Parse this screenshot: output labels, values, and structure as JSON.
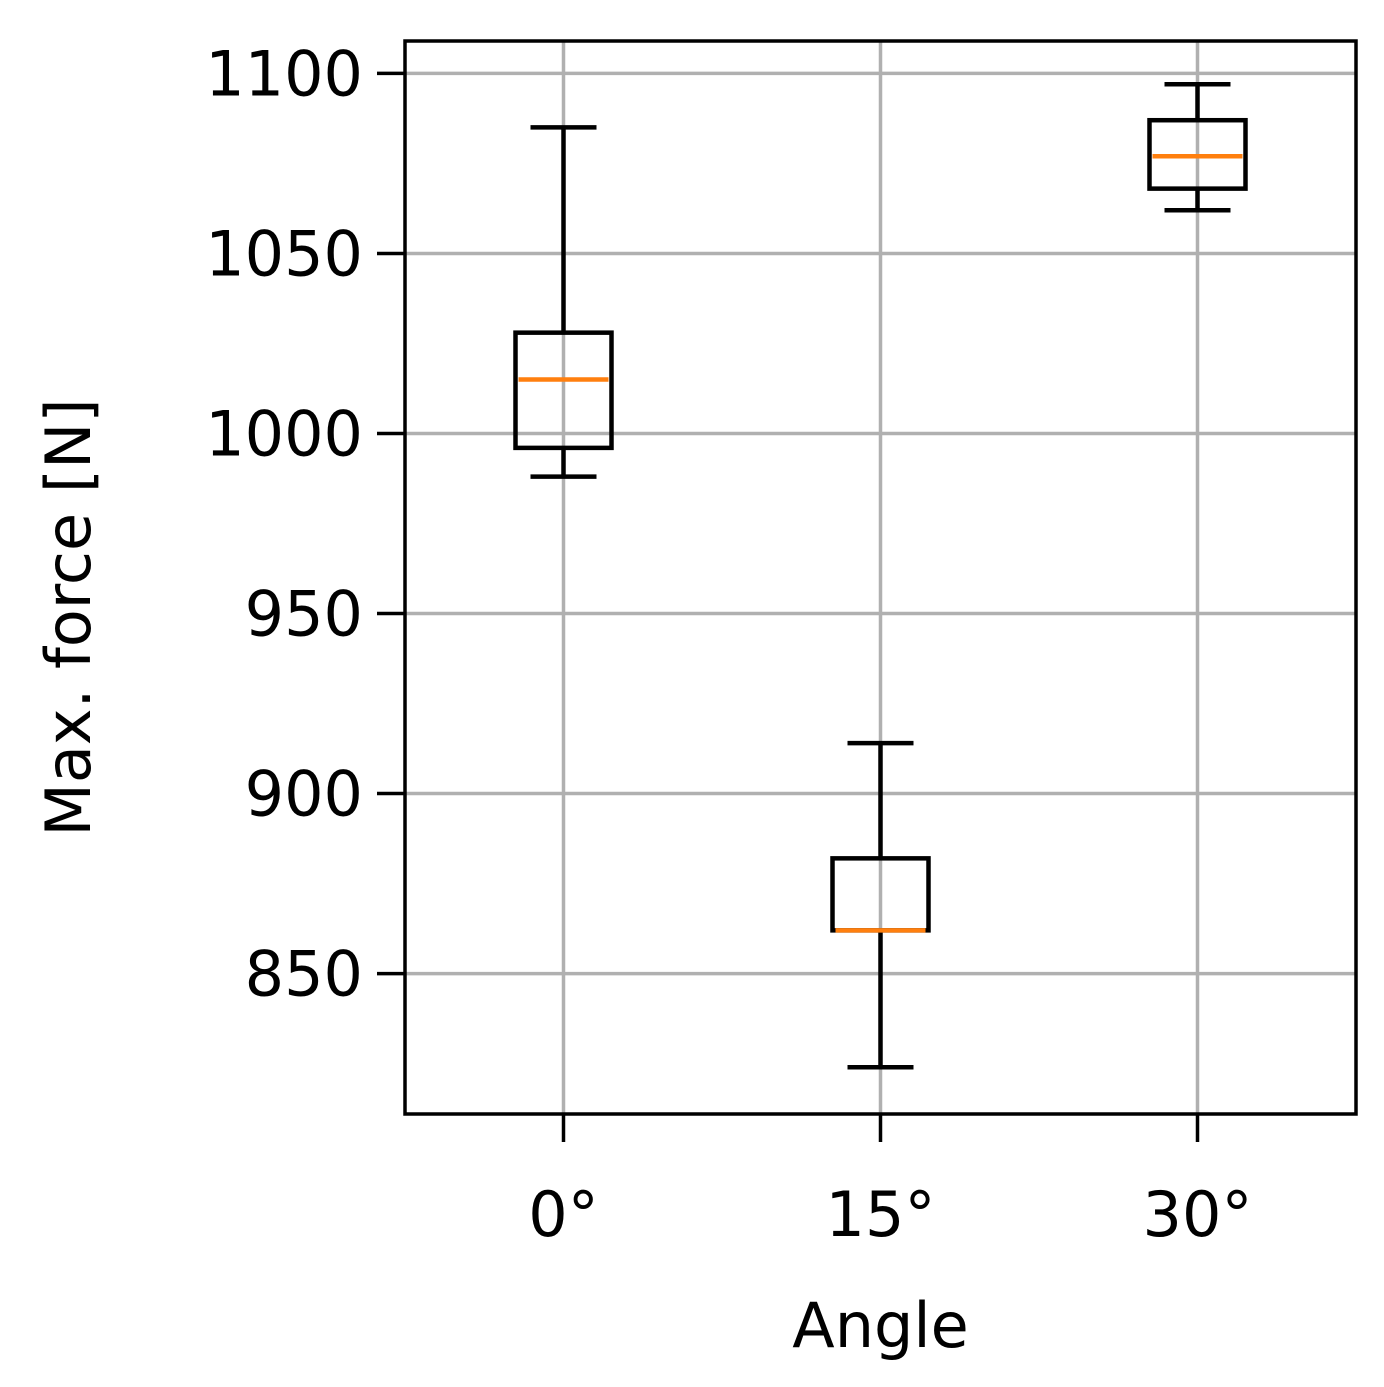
{
  "chart_data": {
    "type": "box",
    "title": "",
    "xlabel": "Angle",
    "ylabel": "Max. force [N]",
    "categories": [
      "0°",
      "15°",
      "30°"
    ],
    "ylim": [
      811,
      1109
    ],
    "yticks": [
      850,
      900,
      950,
      1000,
      1050,
      1100
    ],
    "grid": true,
    "box_color": "#000000",
    "median_color": "#ff7f0e",
    "grid_color": "#b0b0b0",
    "boxes": [
      {
        "category": "0°",
        "whisker_low": 988,
        "q1": 996,
        "median": 1015,
        "q3": 1028,
        "whisker_high": 1085
      },
      {
        "category": "15°",
        "whisker_low": 824,
        "q1": 862,
        "median": 862,
        "q3": 882,
        "whisker_high": 914
      },
      {
        "category": "30°",
        "whisker_low": 1062,
        "q1": 1068,
        "median": 1077,
        "q3": 1087,
        "whisker_high": 1097
      }
    ]
  }
}
